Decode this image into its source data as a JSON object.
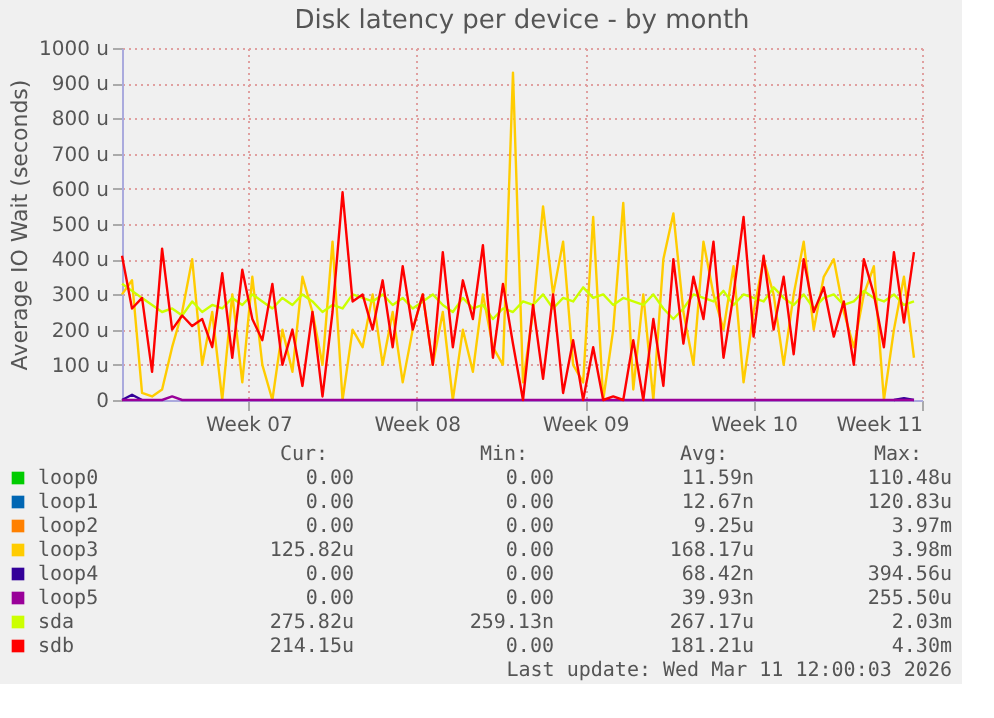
{
  "chart_data": {
    "type": "line",
    "title": "Disk latency per device - by month",
    "ylabel": "Average IO Wait (seconds)",
    "x": [
      "2026-02-07T06:00",
      "2026-02-07T16:00",
      "2026-02-08T02:00",
      "2026-02-08T12:00",
      "2026-02-08T22:00",
      "2026-02-09T08:00",
      "2026-02-09T18:00",
      "2026-02-10T04:00",
      "2026-02-10T14:00",
      "2026-02-11T00:00",
      "2026-02-11T10:00",
      "2026-02-11T20:00",
      "2026-02-12T06:00",
      "2026-02-12T16:00",
      "2026-02-13T02:00",
      "2026-02-13T12:00",
      "2026-02-13T22:00",
      "2026-02-14T08:00",
      "2026-02-14T18:00",
      "2026-02-15T04:00",
      "2026-02-15T14:00",
      "2026-02-16T00:00",
      "2026-02-16T10:00",
      "2026-02-16T20:00",
      "2026-02-17T06:00",
      "2026-02-17T16:00",
      "2026-02-18T02:00",
      "2026-02-18T12:00",
      "2026-02-18T22:00",
      "2026-02-19T08:00",
      "2026-02-19T18:00",
      "2026-02-20T04:00",
      "2026-02-20T14:00",
      "2026-02-21T00:00",
      "2026-02-21T10:00",
      "2026-02-21T20:00",
      "2026-02-22T06:00",
      "2026-02-22T16:00",
      "2026-02-23T02:00",
      "2026-02-23T12:00",
      "2026-02-23T22:00",
      "2026-02-24T08:00",
      "2026-02-24T18:00",
      "2026-02-25T04:00",
      "2026-02-25T14:00",
      "2026-02-26T00:00",
      "2026-02-26T10:00",
      "2026-02-26T20:00",
      "2026-02-27T06:00",
      "2026-02-27T16:00",
      "2026-02-28T02:00",
      "2026-02-28T12:00",
      "2026-02-28T22:00",
      "2026-03-01T08:00",
      "2026-03-01T18:00",
      "2026-03-02T04:00",
      "2026-03-02T14:00",
      "2026-03-03T00:00",
      "2026-03-03T10:00",
      "2026-03-03T20:00",
      "2026-03-04T06:00",
      "2026-03-04T16:00",
      "2026-03-05T02:00",
      "2026-03-05T12:00",
      "2026-03-05T22:00",
      "2026-03-06T08:00",
      "2026-03-06T18:00",
      "2026-03-07T04:00",
      "2026-03-07T14:00",
      "2026-03-08T00:00",
      "2026-03-08T10:00",
      "2026-03-08T20:00",
      "2026-03-09T06:00",
      "2026-03-09T16:00",
      "2026-03-10T02:00",
      "2026-03-10T12:00",
      "2026-03-10T22:00",
      "2026-03-11T08:00",
      "2026-03-11T18:00",
      "2026-03-12T04:00"
    ],
    "xlim": [
      "2026-02-07T06:00",
      "2026-03-12T12:00"
    ],
    "xticks": [
      {
        "value": "2026-02-12T12:00",
        "label": "Week 07"
      },
      {
        "value": "2026-02-19T12:00",
        "label": "Week 08"
      },
      {
        "value": "2026-02-26T12:00",
        "label": "Week 09"
      },
      {
        "value": "2026-03-05T12:00",
        "label": "Week 10"
      },
      {
        "value": "2026-03-12T12:00",
        "label": "Week 11"
      }
    ],
    "ylim": [
      0,
      1000
    ],
    "yticks": [
      0,
      {
        "value": 100,
        "label": "100 u"
      },
      {
        "value": 200,
        "label": "200 u"
      },
      {
        "value": 300,
        "label": "300 u"
      },
      {
        "value": 400,
        "label": "400 u"
      },
      {
        "value": 500,
        "label": "500 u"
      },
      {
        "value": 600,
        "label": "600 u"
      },
      {
        "value": 700,
        "label": "700 u"
      },
      {
        "value": 800,
        "label": "800 u"
      },
      {
        "value": 900,
        "label": "900 u"
      },
      {
        "value": 1000,
        "label": "1000 u"
      }
    ],
    "grid": true,
    "legend": "bottom",
    "series": [
      {
        "name": "loop0",
        "color": "#00cc00",
        "values": [
          null,
          null,
          null,
          null,
          null,
          null,
          null,
          null,
          null,
          null,
          null,
          null,
          null,
          null,
          null,
          null,
          null,
          null,
          null,
          null,
          null,
          null,
          null,
          null,
          null,
          null,
          null,
          null,
          null,
          null,
          null,
          null,
          null,
          null,
          null,
          null,
          null,
          null,
          null,
          null,
          null,
          null,
          null,
          null,
          null,
          null,
          null,
          null,
          null,
          null,
          null,
          null,
          null,
          null,
          null,
          null,
          null,
          null,
          null,
          null,
          null,
          null,
          null,
          null,
          null,
          null,
          null,
          null,
          null,
          null,
          null,
          null,
          null,
          null,
          null,
          null,
          null,
          null,
          null,
          null
        ]
      },
      {
        "name": "loop1",
        "color": "#0066b3",
        "values": [
          null,
          null,
          null,
          null,
          null,
          null,
          null,
          null,
          null,
          null,
          null,
          null,
          null,
          null,
          null,
          null,
          null,
          null,
          null,
          null,
          null,
          null,
          null,
          null,
          null,
          null,
          null,
          null,
          null,
          null,
          null,
          null,
          null,
          null,
          null,
          null,
          null,
          null,
          null,
          null,
          null,
          null,
          null,
          null,
          null,
          null,
          null,
          null,
          null,
          null,
          null,
          null,
          null,
          null,
          null,
          null,
          null,
          null,
          null,
          null,
          null,
          null,
          null,
          null,
          null,
          null,
          null,
          null,
          null,
          null,
          null,
          null,
          null,
          null,
          null,
          null,
          null,
          null,
          null,
          null
        ]
      },
      {
        "name": "loop2",
        "color": "#ff8000",
        "values": [
          null,
          null,
          null,
          null,
          null,
          null,
          null,
          null,
          null,
          null,
          null,
          null,
          null,
          null,
          null,
          null,
          null,
          null,
          null,
          null,
          null,
          null,
          null,
          null,
          null,
          null,
          null,
          null,
          null,
          null,
          null,
          null,
          null,
          null,
          null,
          null,
          null,
          null,
          null,
          null,
          null,
          null,
          null,
          null,
          null,
          null,
          null,
          null,
          null,
          null,
          null,
          null,
          null,
          null,
          null,
          null,
          null,
          null,
          null,
          null,
          null,
          null,
          null,
          null,
          null,
          null,
          null,
          null,
          null,
          null,
          null,
          null,
          null,
          null,
          null,
          null,
          null,
          null,
          null,
          null
        ]
      },
      {
        "name": "loop3",
        "color": "#ffcc00",
        "values": [
          300,
          340,
          20,
          10,
          30,
          150,
          250,
          400,
          100,
          250,
          0,
          300,
          50,
          350,
          100,
          0,
          200,
          80,
          350,
          250,
          100,
          450,
          0,
          200,
          150,
          300,
          100,
          250,
          50,
          200,
          300,
          100,
          250,
          0,
          200,
          80,
          300,
          150,
          100,
          930,
          50,
          250,
          550,
          300,
          450,
          100,
          50,
          520,
          0,
          200,
          560,
          30,
          300,
          0,
          400,
          530,
          250,
          100,
          450,
          300,
          200,
          380,
          50,
          250,
          400,
          300,
          100,
          300,
          450,
          200,
          350,
          400,
          250,
          150,
          300,
          380,
          0,
          200,
          350,
          120
        ]
      },
      {
        "name": "loop4",
        "color": "#330099",
        "values": [
          0,
          15,
          0,
          null,
          null,
          null,
          null,
          null,
          null,
          null,
          null,
          null,
          null,
          null,
          null,
          null,
          null,
          null,
          null,
          null,
          null,
          null,
          null,
          null,
          null,
          null,
          null,
          null,
          null,
          null,
          null,
          null,
          null,
          null,
          null,
          null,
          null,
          null,
          null,
          null,
          null,
          null,
          null,
          null,
          null,
          null,
          null,
          null,
          null,
          null,
          null,
          null,
          null,
          null,
          null,
          null,
          null,
          null,
          null,
          null,
          null,
          null,
          null,
          null,
          null,
          null,
          null,
          null,
          null,
          null,
          null,
          null,
          null,
          null,
          null,
          null,
          null,
          0,
          5,
          0
        ]
      },
      {
        "name": "loop5",
        "color": "#990099",
        "values": [
          0,
          0,
          0,
          0,
          0,
          10,
          0,
          0,
          0,
          0,
          0,
          0,
          0,
          0,
          0,
          0,
          0,
          0,
          0,
          0,
          0,
          0,
          0,
          0,
          0,
          0,
          0,
          0,
          0,
          0,
          0,
          0,
          0,
          0,
          0,
          0,
          0,
          0,
          0,
          0,
          0,
          0,
          0,
          0,
          0,
          0,
          0,
          0,
          0,
          0,
          0,
          0,
          0,
          0,
          0,
          0,
          0,
          0,
          0,
          0,
          0,
          0,
          0,
          0,
          0,
          0,
          0,
          0,
          0,
          0,
          0,
          0,
          0,
          0,
          0,
          0,
          0,
          0,
          0,
          0
        ]
      },
      {
        "name": "sda",
        "color": "#ccff00",
        "values": [
          330,
          310,
          290,
          270,
          250,
          260,
          240,
          280,
          250,
          270,
          260,
          290,
          270,
          300,
          280,
          260,
          290,
          270,
          300,
          280,
          250,
          270,
          260,
          300,
          290,
          280,
          300,
          270,
          290,
          260,
          280,
          300,
          270,
          250,
          290,
          260,
          270,
          230,
          260,
          250,
          280,
          270,
          300,
          260,
          290,
          280,
          320,
          290,
          300,
          270,
          290,
          280,
          270,
          300,
          260,
          230,
          260,
          300,
          290,
          280,
          310,
          270,
          300,
          290,
          280,
          320,
          290,
          270,
          300,
          260,
          290,
          300,
          270,
          280,
          310,
          290,
          280,
          300,
          270,
          280
        ]
      },
      {
        "name": "sdb",
        "color": "#ff0000",
        "values": [
          410,
          260,
          290,
          80,
          430,
          200,
          240,
          210,
          230,
          150,
          360,
          120,
          370,
          230,
          170,
          330,
          100,
          200,
          40,
          250,
          10,
          250,
          590,
          280,
          300,
          200,
          340,
          150,
          380,
          200,
          300,
          100,
          420,
          150,
          340,
          230,
          440,
          120,
          330,
          160,
          0,
          270,
          60,
          300,
          20,
          170,
          0,
          150,
          0,
          10,
          0,
          170,
          0,
          230,
          40,
          400,
          160,
          350,
          230,
          450,
          120,
          300,
          520,
          180,
          410,
          200,
          350,
          130,
          400,
          250,
          320,
          180,
          280,
          100,
          400,
          300,
          150,
          420,
          220,
          420
        ]
      }
    ],
    "annotations": [
      "Cur:",
      "Min:",
      "Avg:",
      "Max:",
      "0.00",
      "0.00",
      "11.59n",
      "110.48u",
      "0.00",
      "0.00",
      "12.67n",
      "120.83u",
      "0.00",
      "0.00",
      "9.25u",
      "3.97m",
      "125.82u",
      "0.00",
      "168.17u",
      "3.98m",
      "0.00",
      "0.00",
      "68.42n",
      "394.56u",
      "0.00",
      "0.00",
      "39.93n",
      "255.50u",
      "275.82u",
      "259.13n",
      "267.17u",
      "2.03m",
      "214.15u",
      "0.00",
      "181.21u",
      "4.30m",
      "Last update: Wed Mar 11 12:00:03 2026"
    ]
  }
}
